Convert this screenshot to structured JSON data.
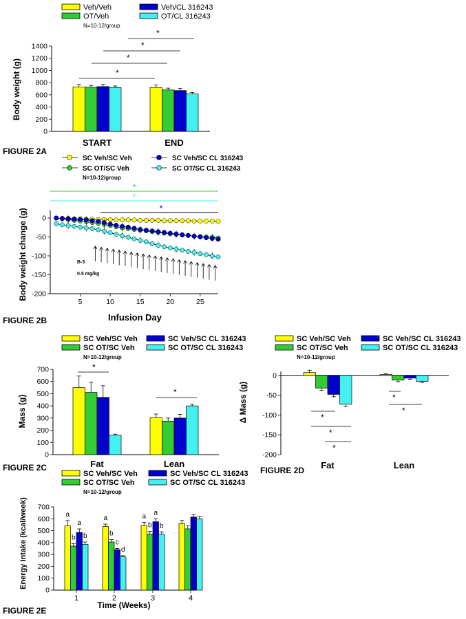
{
  "colors": {
    "yellow": "#ffff00",
    "green": "#33cc33",
    "blue": "#0000cc",
    "cyan": "#44f0f0",
    "axis": "#000000"
  },
  "n_label": "N=10-12/group",
  "chart_data": [
    {
      "id": "2A",
      "type": "bar",
      "figure_label": "FIGURE 2A",
      "legend": [
        "Veh/Veh",
        "OT/Veh",
        "Veh/CL 316243",
        "OT/CL 316243"
      ],
      "categories": [
        "START",
        "END"
      ],
      "ylabel": "Body weight (g)",
      "xlabel": "",
      "ylim": [
        0,
        1400
      ],
      "yticks": [
        "0",
        "200",
        "400",
        "600",
        "800",
        "1000",
        "1200",
        "1400"
      ],
      "series": [
        {
          "name": "Veh/Veh",
          "values": [
            730,
            720
          ],
          "errors": [
            40,
            40
          ]
        },
        {
          "name": "OT/Veh",
          "values": [
            725,
            680
          ],
          "errors": [
            30,
            30
          ]
        },
        {
          "name": "Veh/CL 316243",
          "values": [
            735,
            670
          ],
          "errors": [
            35,
            35
          ]
        },
        {
          "name": "OT/CL 316243",
          "values": [
            720,
            615
          ],
          "errors": [
            25,
            25
          ]
        }
      ],
      "significance": [
        "*",
        "*",
        "*",
        "*"
      ]
    },
    {
      "id": "2B",
      "type": "line",
      "figure_label": "FIGURE 2B",
      "legend": [
        "SC Veh/SC Veh",
        "SC OT/SC Veh",
        "SC Veh/SC CL 316243",
        "SC OT/SC CL 316243"
      ],
      "xlabel": "Infusion Day",
      "ylabel": "Body weight change (g)",
      "xlim": [
        0,
        28
      ],
      "ylim": [
        -200,
        20
      ],
      "xticks": [
        "5",
        "10",
        "15",
        "20",
        "25"
      ],
      "yticks": [
        "0",
        "-50",
        "-100",
        "-150",
        "-200"
      ],
      "x": [
        1,
        2,
        3,
        4,
        5,
        6,
        7,
        8,
        9,
        10,
        11,
        12,
        13,
        14,
        15,
        16,
        17,
        18,
        19,
        20,
        21,
        22,
        23,
        24,
        25,
        26,
        27,
        28
      ],
      "series": [
        {
          "name": "SC Veh/SC Veh",
          "values": [
            0,
            -1,
            -1,
            -2,
            -2,
            -3,
            -3,
            -4,
            -4,
            -4,
            -5,
            -5,
            -5,
            -5,
            -6,
            -6,
            -6,
            -6,
            -7,
            -7,
            -7,
            -7,
            -7,
            -8,
            -8,
            -8,
            -8,
            -9
          ]
        },
        {
          "name": "SC OT/SC Veh",
          "values": [
            0,
            -2,
            -4,
            -6,
            -8,
            -10,
            -12,
            -14,
            -17,
            -20,
            -23,
            -26,
            -28,
            -30,
            -32,
            -34,
            -36,
            -38,
            -40,
            -42,
            -43,
            -45,
            -46,
            -48,
            -49,
            -50,
            -51,
            -53
          ]
        },
        {
          "name": "SC Veh/SC CL 316243",
          "values": [
            0,
            -1,
            -2,
            -3,
            -4,
            -5,
            -7,
            -9,
            -12,
            -16,
            -19,
            -22,
            -24,
            -27,
            -30,
            -32,
            -34,
            -36,
            -38,
            -40,
            -42,
            -44,
            -46,
            -48,
            -50,
            -52,
            -54,
            -56
          ]
        },
        {
          "name": "SC OT/SC CL 316243",
          "values": [
            -15,
            -18,
            -20,
            -22,
            -24,
            -26,
            -28,
            -31,
            -35,
            -39,
            -43,
            -47,
            -51,
            -55,
            -59,
            -63,
            -68,
            -72,
            -76,
            -79,
            -82,
            -85,
            -88,
            -91,
            -94,
            -97,
            -100,
            -103
          ]
        }
      ],
      "significance": [
        "*",
        "*",
        "*"
      ],
      "annotation_line1": "B-3",
      "annotation_line2": "0.5 mg/kg",
      "arrow_days": [
        7,
        8,
        9,
        10,
        11,
        12,
        13,
        14,
        15,
        16,
        17,
        18,
        19,
        20,
        21,
        22,
        23,
        24,
        25,
        26,
        27
      ]
    },
    {
      "id": "2C",
      "type": "bar",
      "figure_label": "FIGURE 2C",
      "legend": [
        "SC Veh/SC Veh",
        "SC OT/SC Veh",
        "SC Veh/SC CL 316243",
        "SC OT/SC CL 316243"
      ],
      "categories": [
        "Fat",
        "Lean"
      ],
      "ylabel": "Mass (g)",
      "xlabel": "",
      "ylim": [
        0,
        700
      ],
      "yticks": [
        "0",
        "100",
        "200",
        "300",
        "400",
        "500",
        "600",
        "700"
      ],
      "series": [
        {
          "name": "SC Veh/SC Veh",
          "values": [
            550,
            305
          ],
          "errors": [
            95,
            28
          ]
        },
        {
          "name": "SC OT/SC Veh",
          "values": [
            510,
            275
          ],
          "errors": [
            85,
            25
          ]
        },
        {
          "name": "SC Veh/SC CL 316243",
          "values": [
            470,
            300
          ],
          "errors": [
            95,
            30
          ]
        },
        {
          "name": "SC OT/SC CL 316243",
          "values": [
            160,
            400
          ],
          "errors": [
            8,
            12
          ]
        }
      ],
      "significance": [
        "*",
        "*"
      ]
    },
    {
      "id": "2D",
      "type": "bar",
      "figure_label": "FIGURE 2D",
      "legend": [
        "SC Veh/SC Veh",
        "SC OT/SC Veh",
        "SC Veh/SC CL 316243",
        "SC OT/SC CL 316243"
      ],
      "categories": [
        "Fat",
        "Lean"
      ],
      "ylabel": "Δ Mass (g)",
      "xlabel": "",
      "ylim": [
        -200,
        10
      ],
      "yticks": [
        "0",
        "-50",
        "-100",
        "-150",
        "-200"
      ],
      "series": [
        {
          "name": "SC Veh/SC Veh",
          "values": [
            7,
            2
          ],
          "errors": [
            6,
            3
          ]
        },
        {
          "name": "SC OT/SC Veh",
          "values": [
            -32,
            -12
          ],
          "errors": [
            6,
            4
          ]
        },
        {
          "name": "SC Veh/SC CL 316243",
          "values": [
            -48,
            -7
          ],
          "errors": [
            6,
            3
          ]
        },
        {
          "name": "SC OT/SC CL 316243",
          "values": [
            -73,
            -15
          ],
          "errors": [
            6,
            3
          ]
        }
      ],
      "significance": [
        "*",
        "*",
        "*",
        "*",
        "*"
      ]
    },
    {
      "id": "2E",
      "type": "bar",
      "figure_label": "FIGURE 2E",
      "legend": [
        "SC Veh/SC Veh",
        "SC OT/SC Veh",
        "SC Veh/SC CL 316243",
        "SC OT/SC CL 316243"
      ],
      "categories": [
        "1",
        "2",
        "3",
        "4"
      ],
      "xlabel": "Time (Weeks)",
      "ylabel": "Energy Intake (kcal/week)",
      "ylim": [
        0,
        700
      ],
      "yticks": [
        "0",
        "100",
        "200",
        "300",
        "400",
        "500",
        "600",
        "700"
      ],
      "series": [
        {
          "name": "SC Veh/SC Veh",
          "values": [
            540,
            535,
            545,
            560
          ],
          "errors": [
            45,
            20,
            25,
            25
          ]
        },
        {
          "name": "SC OT/SC Veh",
          "values": [
            370,
            405,
            470,
            515
          ],
          "errors": [
            20,
            20,
            25,
            25
          ]
        },
        {
          "name": "SC Veh/SC CL 316243",
          "values": [
            485,
            340,
            575,
            615
          ],
          "errors": [
            30,
            10,
            25,
            20
          ]
        },
        {
          "name": "SC OT/SC CL 316243",
          "values": [
            385,
            280,
            470,
            600
          ],
          "errors": [
            20,
            10,
            20,
            20
          ]
        }
      ],
      "letters": [
        [
          "a",
          "b",
          "a",
          "b"
        ],
        [
          "a",
          "b",
          "c",
          "d"
        ],
        [
          "a",
          "b",
          "a",
          "b"
        ],
        [
          "",
          "",
          "",
          ""
        ]
      ]
    }
  ]
}
